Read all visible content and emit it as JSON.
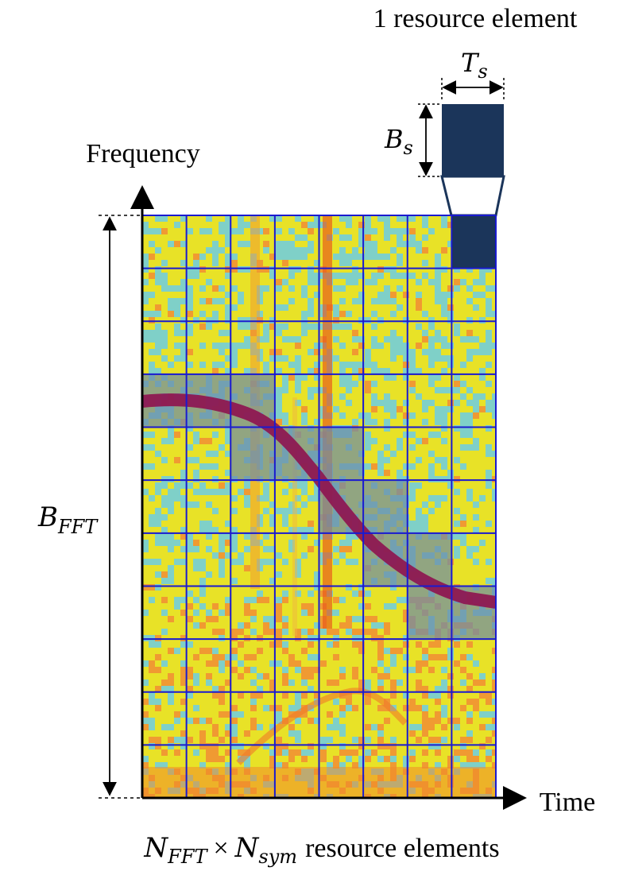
{
  "diagram": {
    "title_resource_element": "1 resource element",
    "label_Ts": {
      "main": "T",
      "sub": "s"
    },
    "label_Bs": {
      "main": "B",
      "sub": "s"
    },
    "label_BFFT": {
      "main": "B",
      "sub": "FFT"
    },
    "axis_y_label": "Frequency",
    "axis_x_label": "Time",
    "caption": {
      "a_main": "N",
      "a_sub": "FFT",
      "times": "×",
      "b_main": "N",
      "b_sub": "sym",
      "rest": "resource elements"
    },
    "grid": {
      "columns": 8,
      "rows": 11
    },
    "colors": {
      "grid_line": "#1a1ad0",
      "resource_element": "#1b355a",
      "highlight_band": "#6c8ba8",
      "chirp": "#8e1550",
      "background_yellow": "#e8e227",
      "background_cyan": "#7fd0c8",
      "background_orange": "#f09a32"
    },
    "highlighted_cells": [
      [
        3,
        0
      ],
      [
        3,
        1
      ],
      [
        3,
        2
      ],
      [
        4,
        2
      ],
      [
        4,
        3
      ],
      [
        4,
        4
      ],
      [
        5,
        4
      ],
      [
        5,
        5
      ],
      [
        6,
        5
      ],
      [
        6,
        6
      ],
      [
        7,
        6
      ],
      [
        7,
        7
      ]
    ],
    "filled_cell": [
      0,
      7
    ]
  }
}
